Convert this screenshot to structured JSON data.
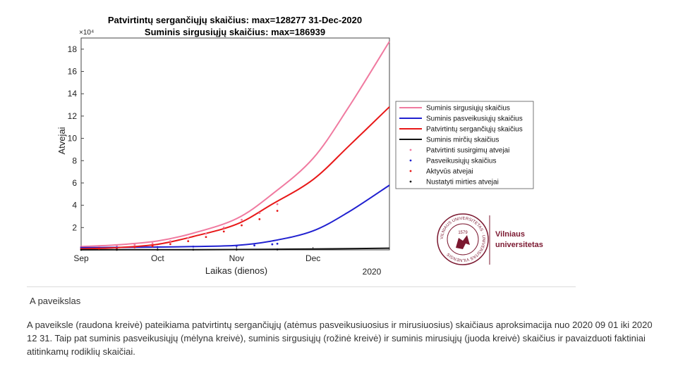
{
  "chart_data": {
    "type": "line",
    "title": "Patvirtintų sergančiųjų skaičius: max=128277     31-Dec-2020",
    "subtitle": "Suminis sirgusiųjų  skaičius: max=186939",
    "xlabel": "Laikas (dienos)",
    "ylabel": "Atvejai",
    "y_exponent_label": "×10⁴",
    "x_year_label": "2020",
    "xlim": [
      "2020-09-01",
      "2020-12-31"
    ],
    "ylim": [
      0,
      190000
    ],
    "x_ticks": [
      {
        "label": "Sep",
        "date": "2020-09-01"
      },
      {
        "label": "Oct",
        "date": "2020-10-01"
      },
      {
        "label": "Nov",
        "date": "2020-11-01"
      },
      {
        "label": "Dec",
        "date": "2020-12-01"
      }
    ],
    "y_ticks": [
      {
        "label": "2",
        "value": 20000
      },
      {
        "label": "4",
        "value": 40000
      },
      {
        "label": "6",
        "value": 60000
      },
      {
        "label": "8",
        "value": 80000
      },
      {
        "label": "10",
        "value": 100000
      },
      {
        "label": "12",
        "value": 120000
      },
      {
        "label": "14",
        "value": 140000
      },
      {
        "label": "16",
        "value": 160000
      },
      {
        "label": "18",
        "value": 180000
      }
    ],
    "grid": false,
    "legend_position": "right",
    "series": [
      {
        "name": "Suminis sirgusiųjų skaičius",
        "kind": "line",
        "color": "#f07aa0",
        "x": [
          "2020-09-01",
          "2020-09-15",
          "2020-10-01",
          "2020-10-15",
          "2020-11-01",
          "2020-11-15",
          "2020-12-01",
          "2020-12-15",
          "2020-12-31"
        ],
        "y": [
          3000,
          4500,
          8000,
          15000,
          28000,
          50000,
          82000,
          128000,
          186939
        ]
      },
      {
        "name": "Suminis pasveikusiųjų skaičius",
        "kind": "line",
        "color": "#2020d0",
        "x": [
          "2020-09-01",
          "2020-09-15",
          "2020-10-01",
          "2020-10-15",
          "2020-11-01",
          "2020-11-15",
          "2020-12-01",
          "2020-12-15",
          "2020-12-31"
        ],
        "y": [
          2000,
          2200,
          2500,
          3000,
          4000,
          8000,
          17000,
          34000,
          58000
        ]
      },
      {
        "name": "Patvirtintų sergančiųjų skaičius",
        "kind": "line",
        "color": "#e81818",
        "x": [
          "2020-09-01",
          "2020-09-15",
          "2020-10-01",
          "2020-10-15",
          "2020-11-01",
          "2020-11-15",
          "2020-12-01",
          "2020-12-15",
          "2020-12-31"
        ],
        "y": [
          1000,
          2000,
          5000,
          12000,
          23000,
          41000,
          63000,
          93000,
          128277
        ]
      },
      {
        "name": "Suminis mirčių skaičius",
        "kind": "line",
        "color": "#111111",
        "x": [
          "2020-09-01",
          "2020-10-01",
          "2020-11-01",
          "2020-12-01",
          "2020-12-31"
        ],
        "y": [
          100,
          150,
          300,
          800,
          1500
        ]
      },
      {
        "name": "Patvirtinti susirgimų atvejai",
        "kind": "dots",
        "color": "#f07aa0",
        "x": [
          "2020-09-01",
          "2020-09-08",
          "2020-09-15",
          "2020-09-22",
          "2020-09-29",
          "2020-10-06",
          "2020-10-13",
          "2020-10-20",
          "2020-10-27",
          "2020-11-03",
          "2020-11-10",
          "2020-11-17"
        ],
        "y": [
          3000,
          3400,
          3900,
          4600,
          5800,
          7800,
          10500,
          14500,
          20000,
          27000,
          33000,
          41000
        ]
      },
      {
        "name": "Pasveikusiųjų skaičius",
        "kind": "dots",
        "color": "#2020d0",
        "x": [
          "2020-09-01",
          "2020-09-15",
          "2020-10-01",
          "2020-10-15",
          "2020-11-01",
          "2020-11-08",
          "2020-11-15",
          "2020-11-17"
        ],
        "y": [
          2000,
          2200,
          2500,
          2900,
          3500,
          4000,
          5000,
          5500
        ]
      },
      {
        "name": "Aktyvūs atvejai",
        "kind": "dots",
        "color": "#e81818",
        "x": [
          "2020-09-01",
          "2020-09-08",
          "2020-09-15",
          "2020-09-22",
          "2020-09-29",
          "2020-10-06",
          "2020-10-13",
          "2020-10-20",
          "2020-10-27",
          "2020-11-03",
          "2020-11-10",
          "2020-11-17"
        ],
        "y": [
          1000,
          1200,
          1600,
          2300,
          3300,
          5200,
          7800,
          11500,
          16500,
          22000,
          27500,
          35000
        ]
      },
      {
        "name": "Nustatyti mirties atvejai",
        "kind": "dots",
        "color": "#111111",
        "x": [
          "2020-09-01",
          "2020-09-15",
          "2020-10-01",
          "2020-10-15",
          "2020-11-01",
          "2020-11-17"
        ],
        "y": [
          100,
          110,
          140,
          180,
          250,
          350
        ]
      }
    ]
  },
  "logo": {
    "name_line1": "Vilniaus",
    "name_line2": "universitetas",
    "seal_year": "1579",
    "seal_ring_text": "VILNIAUS UNIVERSITETAS · UNIVERSITAS VILNENSIS",
    "color": "#7b1830"
  },
  "caption": {
    "label": "A paveikslas",
    "text": "A paveiksle (raudona kreivė) pateikiama patvirtintų sergančiųjų (atėmus pasveikusiuosius ir mirusiuosius) skaičiaus aproksimacija nuo 2020 09 01 iki 2020 12 31. Taip pat suminis pasveikusiųjų (mėlyna kreivė), suminis sirgusiųjų (rožinė kreivė) ir suminis mirusiųjų (juoda kreivė) skaičius ir pavaizduoti faktiniai atitinkamų rodiklių skaičiai."
  }
}
